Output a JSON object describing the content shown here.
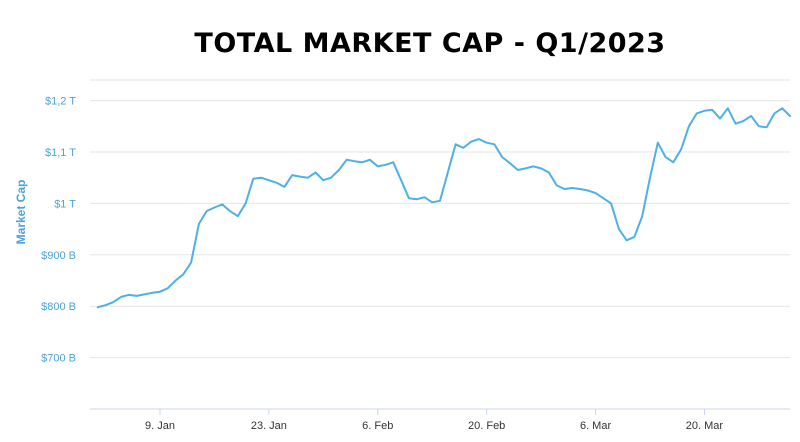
{
  "chart_data": {
    "type": "line",
    "title": "TOTAL MARKET CAP - Q1/2023",
    "ylabel": "Market Cap",
    "xlabel": "",
    "ylim": [
      600,
      1240
    ],
    "xlim": [
      "2022-12-31",
      "2023-03-31"
    ],
    "yticks": [
      {
        "value": 700,
        "label": "$700 B"
      },
      {
        "value": 800,
        "label": "$800 B"
      },
      {
        "value": 900,
        "label": "$900 B"
      },
      {
        "value": 1000,
        "label": "$1 T"
      },
      {
        "value": 1100,
        "label": "$1,1 T"
      },
      {
        "value": 1200,
        "label": "$1,2 T"
      }
    ],
    "xticks": [
      {
        "value": "2023-01-09",
        "label": "9. Jan"
      },
      {
        "value": "2023-01-23",
        "label": "23. Jan"
      },
      {
        "value": "2023-02-06",
        "label": "6. Feb"
      },
      {
        "value": "2023-02-20",
        "label": "20. Feb"
      },
      {
        "value": "2023-03-06",
        "label": "6. Mar"
      },
      {
        "value": "2023-03-20",
        "label": "20. Mar"
      }
    ],
    "grid": "horizontal",
    "legend": "none",
    "series": [
      {
        "color": "#4fb0e3",
        "points": [
          [
            "2023-01-01",
            798
          ],
          [
            "2023-01-02",
            802
          ],
          [
            "2023-01-03",
            808
          ],
          [
            "2023-01-04",
            818
          ],
          [
            "2023-01-05",
            822
          ],
          [
            "2023-01-06",
            820
          ],
          [
            "2023-01-07",
            823
          ],
          [
            "2023-01-08",
            826
          ],
          [
            "2023-01-09",
            828
          ],
          [
            "2023-01-10",
            835
          ],
          [
            "2023-01-11",
            850
          ],
          [
            "2023-01-12",
            862
          ],
          [
            "2023-01-13",
            885
          ],
          [
            "2023-01-14",
            960
          ],
          [
            "2023-01-15",
            985
          ],
          [
            "2023-01-16",
            992
          ],
          [
            "2023-01-17",
            998
          ],
          [
            "2023-01-18",
            985
          ],
          [
            "2023-01-19",
            975
          ],
          [
            "2023-01-20",
            1000
          ],
          [
            "2023-01-21",
            1048
          ],
          [
            "2023-01-22",
            1050
          ],
          [
            "2023-01-23",
            1045
          ],
          [
            "2023-01-24",
            1040
          ],
          [
            "2023-01-25",
            1032
          ],
          [
            "2023-01-26",
            1055
          ],
          [
            "2023-01-27",
            1052
          ],
          [
            "2023-01-28",
            1050
          ],
          [
            "2023-01-29",
            1060
          ],
          [
            "2023-01-30",
            1045
          ],
          [
            "2023-01-31",
            1050
          ],
          [
            "2023-02-01",
            1065
          ],
          [
            "2023-02-02",
            1085
          ],
          [
            "2023-02-03",
            1082
          ],
          [
            "2023-02-04",
            1080
          ],
          [
            "2023-02-05",
            1085
          ],
          [
            "2023-02-06",
            1072
          ],
          [
            "2023-02-07",
            1075
          ],
          [
            "2023-02-08",
            1080
          ],
          [
            "2023-02-09",
            1045
          ],
          [
            "2023-02-10",
            1010
          ],
          [
            "2023-02-11",
            1008
          ],
          [
            "2023-02-12",
            1012
          ],
          [
            "2023-02-13",
            1002
          ],
          [
            "2023-02-14",
            1005
          ],
          [
            "2023-02-15",
            1060
          ],
          [
            "2023-02-16",
            1115
          ],
          [
            "2023-02-17",
            1108
          ],
          [
            "2023-02-18",
            1120
          ],
          [
            "2023-02-19",
            1125
          ],
          [
            "2023-02-20",
            1118
          ],
          [
            "2023-02-21",
            1115
          ],
          [
            "2023-02-22",
            1090
          ],
          [
            "2023-02-23",
            1078
          ],
          [
            "2023-02-24",
            1065
          ],
          [
            "2023-02-25",
            1068
          ],
          [
            "2023-02-26",
            1072
          ],
          [
            "2023-02-27",
            1068
          ],
          [
            "2023-02-28",
            1060
          ],
          [
            "2023-03-01",
            1035
          ],
          [
            "2023-03-02",
            1028
          ],
          [
            "2023-03-03",
            1030
          ],
          [
            "2023-03-04",
            1028
          ],
          [
            "2023-03-05",
            1025
          ],
          [
            "2023-03-06",
            1020
          ],
          [
            "2023-03-07",
            1010
          ],
          [
            "2023-03-08",
            1000
          ],
          [
            "2023-03-09",
            950
          ],
          [
            "2023-03-10",
            928
          ],
          [
            "2023-03-11",
            935
          ],
          [
            "2023-03-12",
            975
          ],
          [
            "2023-03-13",
            1050
          ],
          [
            "2023-03-14",
            1118
          ],
          [
            "2023-03-15",
            1090
          ],
          [
            "2023-03-16",
            1080
          ],
          [
            "2023-03-17",
            1105
          ],
          [
            "2023-03-18",
            1150
          ],
          [
            "2023-03-19",
            1175
          ],
          [
            "2023-03-20",
            1180
          ],
          [
            "2023-03-21",
            1182
          ],
          [
            "2023-03-22",
            1165
          ],
          [
            "2023-03-23",
            1185
          ],
          [
            "2023-03-24",
            1155
          ],
          [
            "2023-03-25",
            1160
          ],
          [
            "2023-03-26",
            1170
          ],
          [
            "2023-03-27",
            1150
          ],
          [
            "2023-03-28",
            1148
          ],
          [
            "2023-03-29",
            1175
          ],
          [
            "2023-03-30",
            1185
          ],
          [
            "2023-03-31",
            1170
          ]
        ]
      }
    ]
  }
}
